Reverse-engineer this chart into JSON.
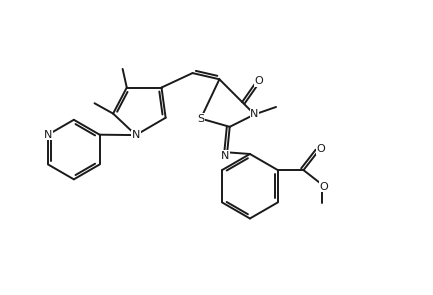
{
  "bg_color": "#ffffff",
  "bond_color": "#1a1a1a",
  "atom_colors": {
    "N": "#1a1a1a",
    "O": "#1a1a1a",
    "S": "#1a1a1a"
  },
  "line_width": 1.4,
  "font_size": 8,
  "fig_width": 4.33,
  "fig_height": 2.95,
  "dpi": 100
}
